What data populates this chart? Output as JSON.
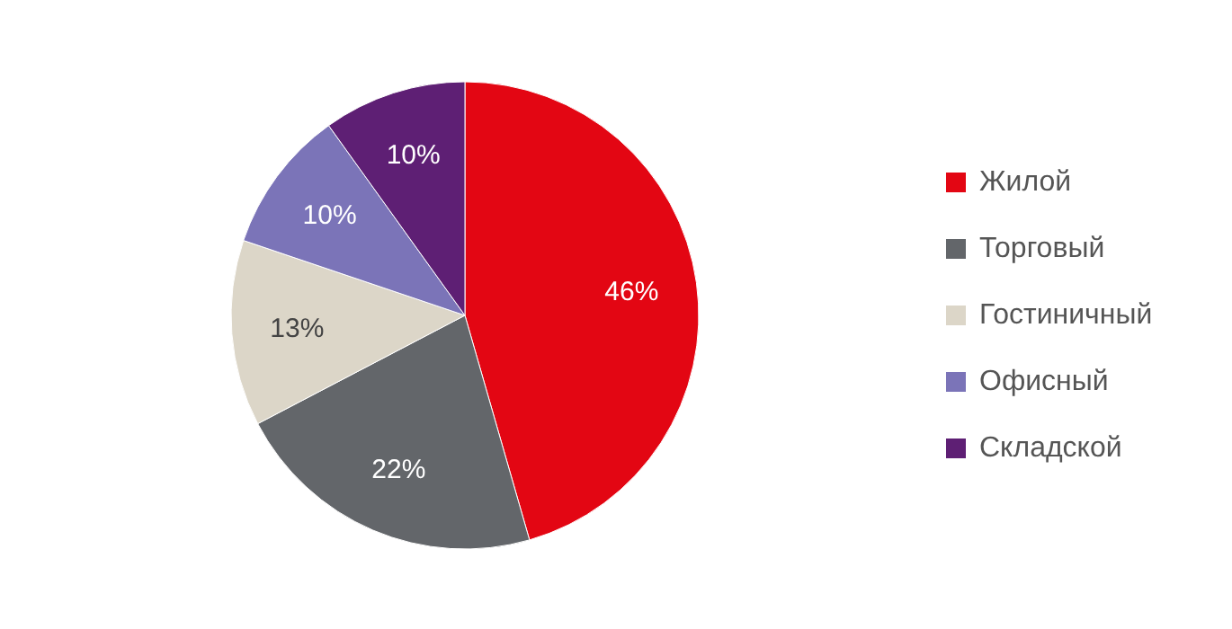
{
  "chart_data": {
    "type": "pie",
    "categories": [
      "Жилой",
      "Торговый",
      "Гостиничный",
      "Офисный",
      "Складской"
    ],
    "values": [
      46,
      22,
      13,
      10,
      10
    ],
    "colors": [
      "#e30613",
      "#63666a",
      "#dcd6c8",
      "#7b74b8",
      "#5e1f74"
    ],
    "value_labels": [
      "46%",
      "22%",
      "13%",
      "10%",
      "10%"
    ],
    "legend": "right"
  }
}
